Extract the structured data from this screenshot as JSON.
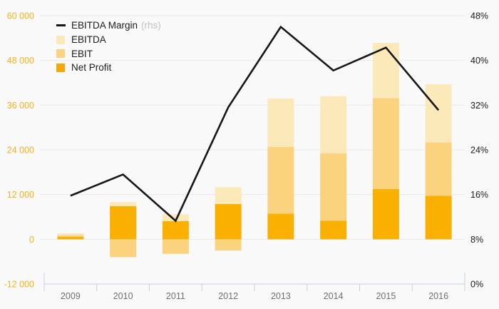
{
  "legend": {
    "items": [
      {
        "label": "EBITDA Margin",
        "suffix": "(rhs)",
        "type": "line",
        "color": "#161616"
      },
      {
        "label": "EBITDA",
        "suffix": "",
        "type": "box",
        "color": "#fce9ba"
      },
      {
        "label": "EBIT",
        "suffix": "",
        "type": "box",
        "color": "#fbd27e"
      },
      {
        "label": "Net Profit",
        "suffix": "",
        "type": "box",
        "color": "#f6a800"
      }
    ]
  },
  "chart_data": {
    "type": "bar",
    "subtype": "stacked-bars-with-line",
    "categories": [
      "2009",
      "2010",
      "2011",
      "2012",
      "2013",
      "2014",
      "2015",
      "2016"
    ],
    "series": [
      {
        "name": "Net Profit",
        "type": "bar",
        "axis": "left",
        "color": "#f9b000",
        "values": [
          700,
          8900,
          4900,
          9500,
          6900,
          5000,
          13500,
          11700
        ]
      },
      {
        "name": "EBIT",
        "type": "bar",
        "axis": "left",
        "color": "#fbd27e",
        "values": [
          400,
          -4800,
          -3900,
          -3000,
          17900,
          18100,
          24400,
          14300
        ]
      },
      {
        "name": "EBITDA",
        "type": "bar",
        "axis": "left",
        "color": "#fce9ba",
        "values": [
          500,
          1100,
          1800,
          4500,
          13000,
          15300,
          14800,
          15600
        ]
      },
      {
        "name": "EBITDA Margin (rhs)",
        "type": "line",
        "axis": "right",
        "color": "#161616",
        "values": [
          15.8,
          19.6,
          11.3,
          31.6,
          46.0,
          38.2,
          42.3,
          31.1
        ]
      }
    ],
    "left_axis": {
      "ticks": [
        "60 000",
        "48 000",
        "36 000",
        "24 000",
        "12 000",
        "0",
        "-12 000"
      ],
      "values": [
        60000,
        48000,
        36000,
        24000,
        12000,
        0,
        -12000
      ],
      "range": [
        -12000,
        60000
      ],
      "label_color": "#f9b019"
    },
    "right_axis": {
      "ticks": [
        "48%",
        "40%",
        "32%",
        "24%",
        "16%",
        "8%",
        "0%"
      ],
      "values": [
        48,
        40,
        32,
        24,
        16,
        8,
        0
      ],
      "range": [
        0,
        48
      ],
      "label_color": "#1a1a1a"
    },
    "grid": "horizontal",
    "legend_position": "top-left",
    "colors": {
      "background": "#f9f9f9",
      "gridline": "#e9e9e9",
      "axis_line": "#c8cfe0",
      "x_label": "#6f6f6f"
    }
  }
}
